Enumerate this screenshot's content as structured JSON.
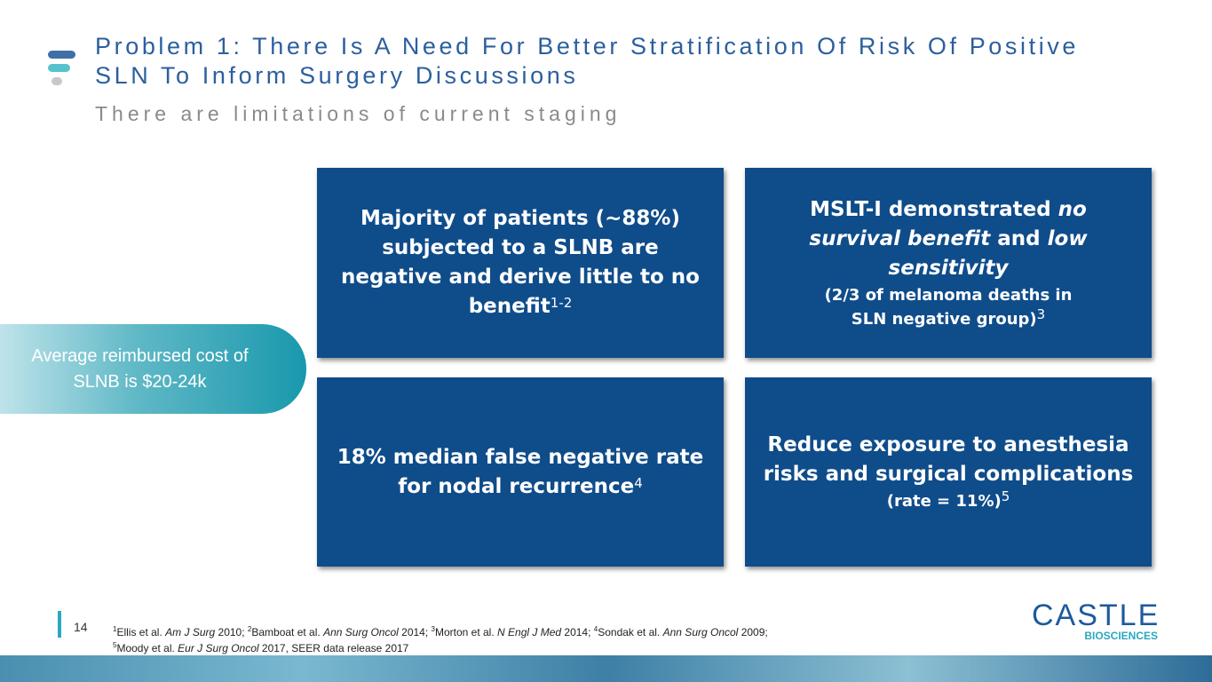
{
  "header": {
    "title": "Problem 1: There Is A Need For Better Stratification Of Risk Of Positive SLN To Inform Surgery Discussions",
    "subtitle": "There are limitations of current staging"
  },
  "callout": "Average reimbursed cost of SLNB is $20-24k",
  "boxes": [
    {
      "runs": [
        "Majority of patients (~88%) subjected to a SLNB are negative and derive little to no benefit"
      ],
      "sup": "1-2"
    },
    {
      "runs": [
        "MSLT-I demonstrated",
        "no survival benefit",
        "and",
        "low sensitivity"
      ],
      "sub": "(2/3 of melanoma deaths in SLN negative group)",
      "sup": "3"
    },
    {
      "runs": [
        "18% median false negative rate for nodal recurrence"
      ],
      "sup": "4"
    },
    {
      "runs": [
        "Reduce exposure to anesthesia risks and surgical complications"
      ],
      "sub": "(rate = 11%)",
      "sup": "5"
    }
  ],
  "footer": {
    "page_number": "14",
    "references": [
      {
        "num": "1",
        "authors": "Ellis et al.",
        "journal": "Am J Surg",
        "year": "2010;"
      },
      {
        "num": "2",
        "authors": "Bamboat et al.",
        "journal": "Ann Surg Oncol",
        "year": "2014;"
      },
      {
        "num": "3",
        "authors": "Morton et al.",
        "journal": "N Engl J Med",
        "year": "2014;"
      },
      {
        "num": "4",
        "authors": "Sondak et al.",
        "journal": "Ann Surg Oncol",
        "year": "2009;"
      },
      {
        "num": "5",
        "authors": "Moody et al.",
        "journal": "Eur J Surg Oncol",
        "year": "2017, SEER data release 2017"
      }
    ]
  },
  "logo": {
    "name": "CASTLE",
    "tagline": "BIOSCIENCES"
  }
}
